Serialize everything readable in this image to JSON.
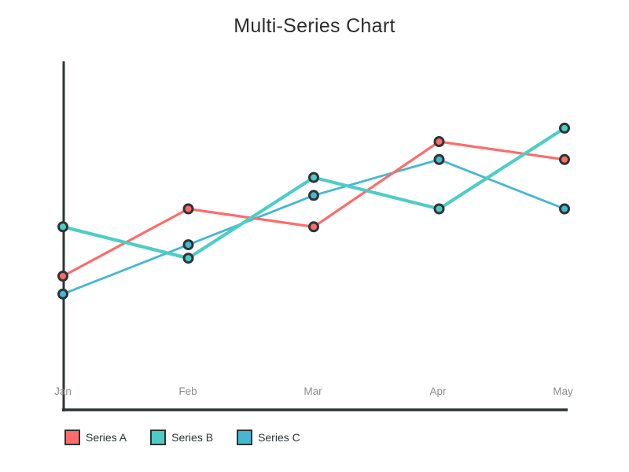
{
  "chart_data": {
    "type": "line",
    "title": "Multi-Series Chart",
    "categories": [
      "Jan",
      "Feb",
      "Mar",
      "Apr",
      "May"
    ],
    "series": [
      {
        "name": "Series A",
        "color": "#ff6b6b",
        "values": [
          30,
          45,
          41,
          60,
          56
        ]
      },
      {
        "name": "Series B",
        "color": "#4ecdc4",
        "values": [
          41,
          34,
          52,
          45,
          63
        ]
      },
      {
        "name": "Series C",
        "color": "#45b7d1",
        "values": [
          26,
          37,
          48,
          56,
          45
        ]
      }
    ],
    "xlabel": "",
    "ylabel": "",
    "ylim": [
      0,
      80
    ],
    "grid": false,
    "y_axis_ticks": "none",
    "legend_position": "bottom-left",
    "marker": "circle",
    "marker_outline_color": "#2d3436",
    "axis_color": "#2d3436",
    "tick_label_color": "#8d8d8d",
    "title_color": "#2d2d2d",
    "background_color": "#ffffff"
  }
}
